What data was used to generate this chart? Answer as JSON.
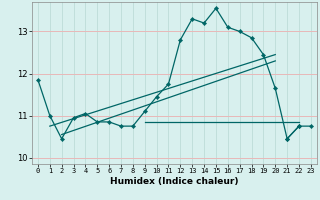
{
  "xlabel": "Humidex (Indice chaleur)",
  "background_color": "#d8f0ee",
  "grid_h_color": "#e8b8b8",
  "grid_v_color": "#b8d8d4",
  "line_color": "#006666",
  "xlim": [
    -0.5,
    23.5
  ],
  "ylim": [
    9.85,
    13.7
  ],
  "yticks": [
    10,
    11,
    12,
    13
  ],
  "xticks": [
    0,
    1,
    2,
    3,
    4,
    5,
    6,
    7,
    8,
    9,
    10,
    11,
    12,
    13,
    14,
    15,
    16,
    17,
    18,
    19,
    20,
    21,
    22,
    23
  ],
  "main_line": {
    "x": [
      0,
      1,
      2,
      3,
      4,
      5,
      6,
      7,
      8,
      9,
      10,
      11,
      12,
      13,
      14,
      15,
      16,
      17,
      18,
      19,
      20,
      21,
      22
    ],
    "y": [
      11.85,
      11.0,
      10.45,
      10.95,
      11.05,
      10.85,
      10.85,
      10.75,
      10.75,
      11.1,
      11.45,
      11.75,
      12.8,
      13.3,
      13.2,
      13.55,
      13.1,
      13.0,
      12.85,
      12.45,
      11.65,
      10.45,
      10.75
    ]
  },
  "flat_line": {
    "x": [
      9,
      22
    ],
    "y": [
      10.85,
      10.85
    ]
  },
  "trend_line1": {
    "x": [
      1,
      20
    ],
    "y": [
      10.75,
      12.45
    ]
  },
  "trend_line2": {
    "x": [
      2,
      20
    ],
    "y": [
      10.55,
      12.3
    ]
  },
  "end_line": {
    "x": [
      21,
      22,
      23
    ],
    "y": [
      10.45,
      10.75,
      10.75
    ]
  }
}
